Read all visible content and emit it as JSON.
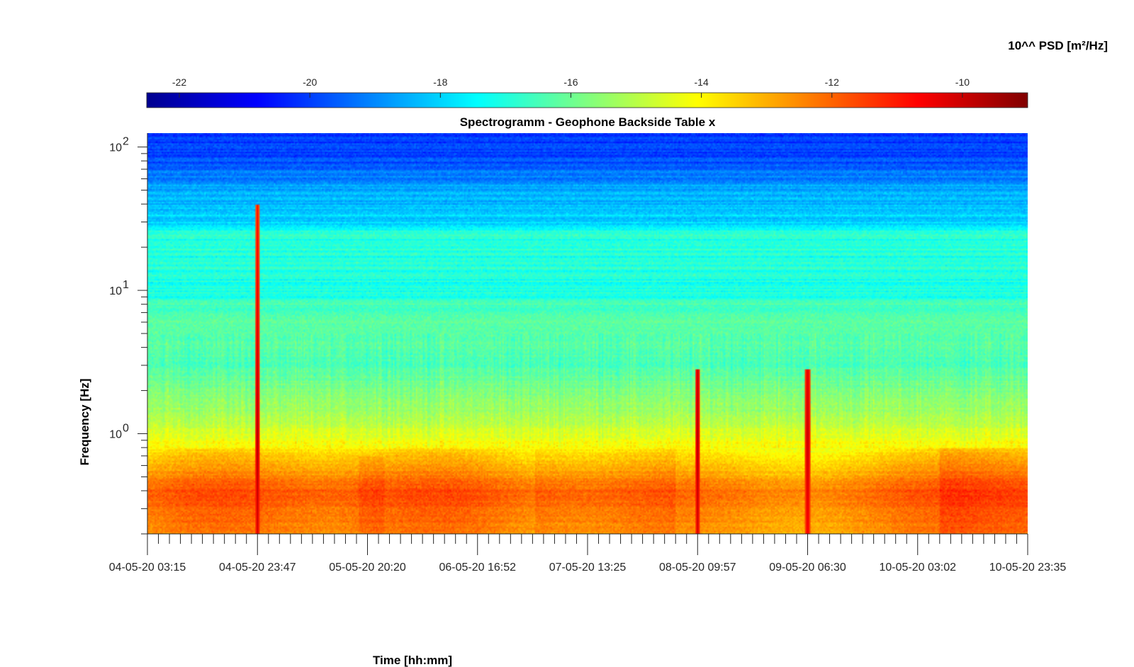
{
  "chart_data": {
    "type": "heatmap",
    "title": "Spectrogramm - Geophone Backside Table x",
    "xlabel": "Time [hh:mm]",
    "ylabel": "Frequency [Hz]",
    "y_scale": "log",
    "ylim": [
      0.2,
      125
    ],
    "y_ticks": [
      {
        "value": 100,
        "base": "10",
        "exp": "2"
      },
      {
        "value": 10,
        "base": "10",
        "exp": "1"
      },
      {
        "value": 1,
        "base": "10",
        "exp": "0"
      }
    ],
    "x_ticks": [
      "04-05-20 03:15",
      "04-05-20 23:47",
      "05-05-20 20:20",
      "06-05-20 16:52",
      "07-05-20 13:25",
      "08-05-20 09:57",
      "09-05-20 06:30",
      "10-05-20 03:02",
      "10-05-20 23:35"
    ],
    "xlim": [
      "04-05-20 03:15",
      "10-05-20 23:35"
    ],
    "colorbar": {
      "label": "10^^ PSD [m²/Hz]",
      "range": [
        -22.5,
        -9
      ],
      "ticks": [
        "-22",
        "-20",
        "-18",
        "-16",
        "-14",
        "-12",
        "-10"
      ],
      "tick_values": [
        -22,
        -20,
        -18,
        -16,
        -14,
        -12,
        -10
      ],
      "colormap": "jet",
      "location": "top"
    },
    "psd_profile_log10": [
      {
        "freq_hz": 125,
        "psd": -20.2
      },
      {
        "freq_hz": 80,
        "psd": -19.8
      },
      {
        "freq_hz": 50,
        "psd": -18.6
      },
      {
        "freq_hz": 30,
        "psd": -17.9
      },
      {
        "freq_hz": 25,
        "psd": -16.9
      },
      {
        "freq_hz": 10,
        "psd": -17.1
      },
      {
        "freq_hz": 6,
        "psd": -16.2
      },
      {
        "freq_hz": 3,
        "psd": -16.4
      },
      {
        "freq_hz": 1.2,
        "psd": -15.0
      },
      {
        "freq_hz": 0.75,
        "psd": -13.8
      },
      {
        "freq_hz": 0.4,
        "psd": -12.0
      },
      {
        "freq_hz": 0.2,
        "psd": -12.6
      }
    ],
    "events": [
      {
        "time": "04-05-20 23:47",
        "note": "broadband spike"
      },
      {
        "time": "08-05-20 09:57",
        "note": "broadband spike"
      },
      {
        "time": "09-05-20 06:30",
        "note": "broadband spike"
      }
    ],
    "grid": false
  }
}
